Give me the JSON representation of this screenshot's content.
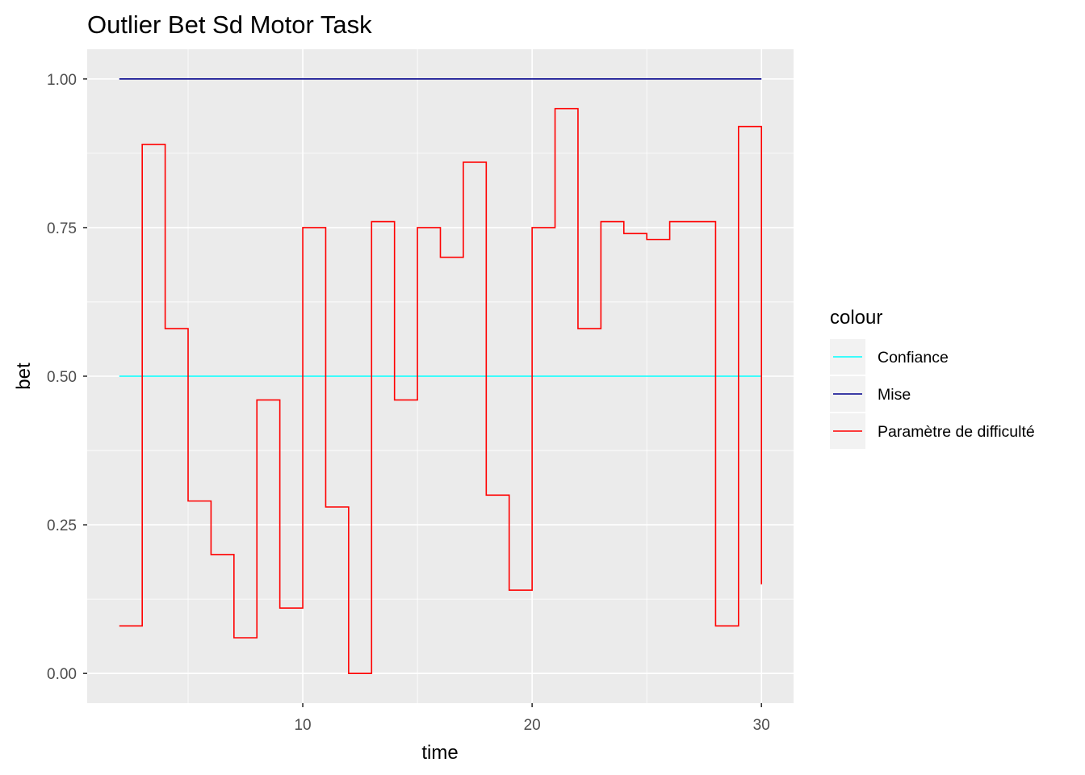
{
  "chart_data": {
    "type": "line",
    "title": "Outlier Bet Sd Motor Task",
    "xlabel": "time",
    "ylabel": "bet",
    "xlim": [
      0.6,
      31.4
    ],
    "ylim": [
      -0.05,
      1.05
    ],
    "x_ticks": [
      10,
      20,
      30
    ],
    "x_tick_labels": [
      "10",
      "20",
      "30"
    ],
    "x_minor_ticks": [
      5,
      15,
      25
    ],
    "y_ticks": [
      0,
      0.25,
      0.5,
      0.75,
      1.0
    ],
    "y_tick_labels": [
      "0.00",
      "0.25",
      "0.50",
      "0.75",
      "1.00"
    ],
    "y_minor_ticks": [
      0.125,
      0.375,
      0.625,
      0.875
    ],
    "grid": true,
    "legend": {
      "title": "colour",
      "position": "right",
      "entries": [
        "Confiance",
        "Mise",
        "Paramètre de difficulté"
      ]
    },
    "series": [
      {
        "name": "Confiance",
        "color": "#00FFFF",
        "step": false,
        "x": [
          2,
          30
        ],
        "y": [
          0.5,
          0.5
        ]
      },
      {
        "name": "Mise",
        "color": "#00008B",
        "step": false,
        "x": [
          2,
          30
        ],
        "y": [
          1.0,
          1.0
        ]
      },
      {
        "name": "Paramètre de difficulté",
        "color": "#FF0000",
        "step": true,
        "x": [
          2,
          3,
          4,
          5,
          6,
          7,
          8,
          9,
          10,
          11,
          12,
          13,
          14,
          15,
          16,
          17,
          18,
          19,
          20,
          21,
          22,
          23,
          24,
          25,
          26,
          27,
          28,
          29,
          30
        ],
        "y": [
          0.08,
          0.89,
          0.58,
          0.29,
          0.2,
          0.06,
          0.46,
          0.11,
          0.75,
          0.28,
          0.0,
          0.76,
          0.46,
          0.75,
          0.7,
          0.86,
          0.3,
          0.14,
          0.75,
          0.95,
          0.58,
          0.76,
          0.74,
          0.73,
          0.76,
          0.76,
          0.08,
          0.92,
          0.15
        ]
      }
    ]
  }
}
